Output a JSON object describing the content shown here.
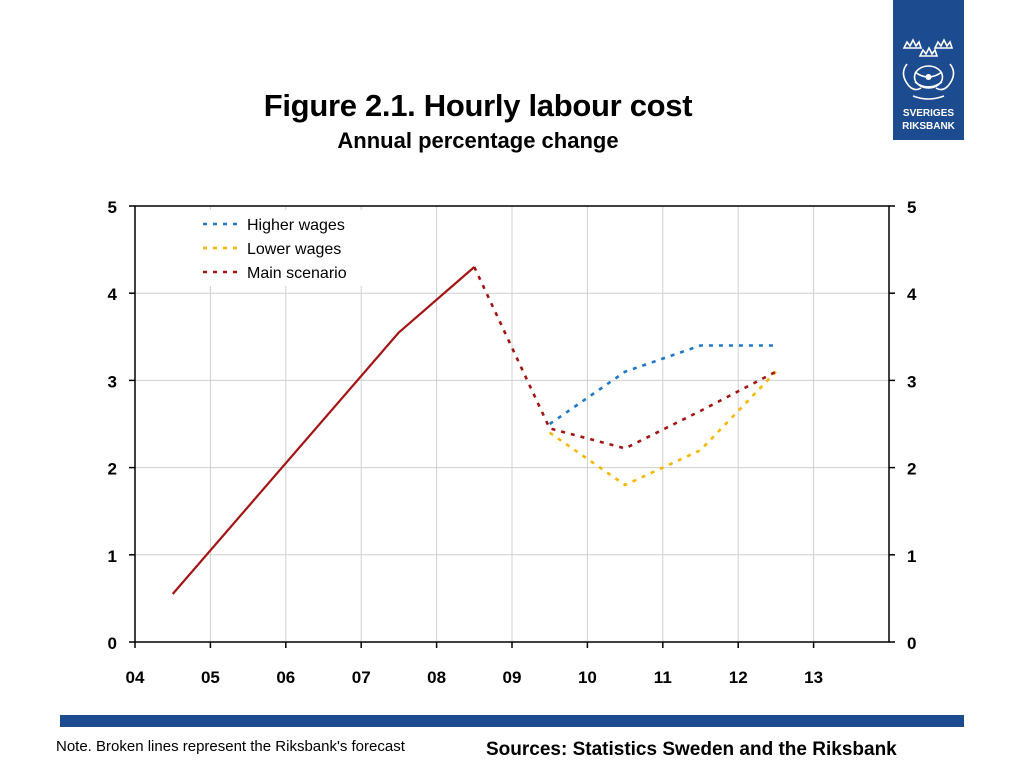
{
  "header": {
    "title": "Figure 2.1. Hourly labour cost",
    "subtitle": "Annual percentage change"
  },
  "logo": {
    "line1": "SVERIGES",
    "line2": "RIKSBANK",
    "color": "#1c4b8f"
  },
  "footer": {
    "note": "Note. Broken lines represent the Riksbank's forecast",
    "sources": "Sources: Statistics Sweden and the Riksbank"
  },
  "chart_data": {
    "type": "line",
    "title": "Figure 2.1. Hourly labour cost",
    "subtitle": "Annual percentage change",
    "xlabel": "",
    "ylabel": "",
    "x_ticks": [
      "04",
      "05",
      "06",
      "07",
      "08",
      "09",
      "10",
      "11",
      "12",
      "13"
    ],
    "xlim": [
      2004,
      2014
    ],
    "ylim": [
      0,
      5
    ],
    "y_ticks": [
      0,
      1,
      2,
      3,
      4,
      5
    ],
    "grid": true,
    "legend_position": "top-left",
    "series": [
      {
        "name": "",
        "color": "#a31515",
        "style": "solid",
        "points": [
          [
            2004.5,
            0.55
          ],
          [
            2007.5,
            3.55
          ],
          [
            2008.5,
            4.3
          ]
        ]
      },
      {
        "name": "Higher wages",
        "color": "#1f78c8",
        "style": "dotted",
        "points": [
          [
            2009.5,
            2.5
          ],
          [
            2010.5,
            3.1
          ],
          [
            2011.5,
            3.4
          ],
          [
            2012.5,
            3.4
          ]
        ]
      },
      {
        "name": "Lower wages",
        "color": "#f5b800",
        "style": "dotted",
        "points": [
          [
            2009.5,
            2.4
          ],
          [
            2010.5,
            1.8
          ],
          [
            2011.5,
            2.2
          ],
          [
            2012.5,
            3.1
          ]
        ]
      },
      {
        "name": "Main scenario",
        "color": "#a31515",
        "style": "dotted",
        "points": [
          [
            2008.5,
            4.3
          ],
          [
            2009.5,
            2.45
          ],
          [
            2010.5,
            2.22
          ],
          [
            2011.5,
            2.65
          ],
          [
            2012.5,
            3.1
          ]
        ]
      }
    ]
  }
}
